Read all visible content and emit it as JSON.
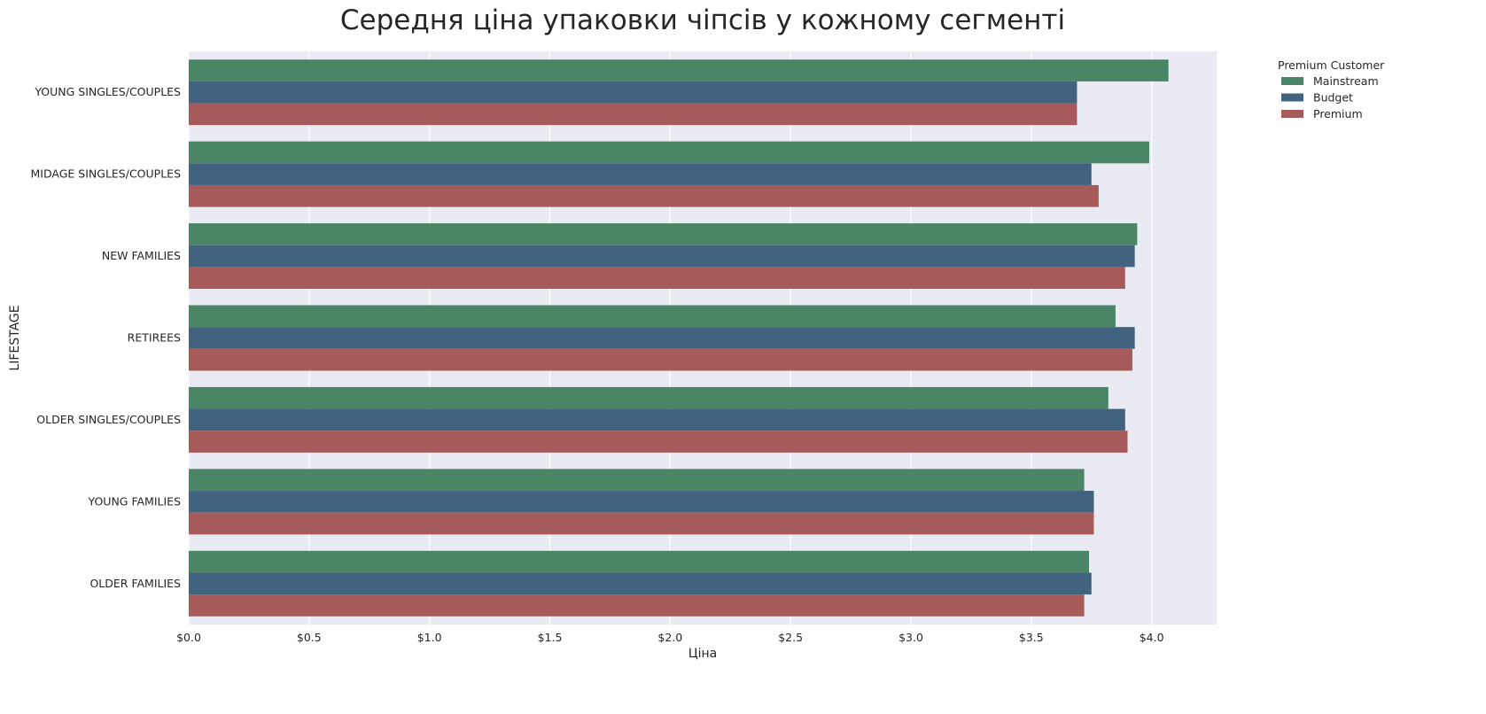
{
  "chart_data": {
    "type": "bar",
    "orientation": "horizontal",
    "title": "Середня ціна упаковки чіпсів у кожному сегменті",
    "xlabel": "Ціна",
    "ylabel": "LIFESTAGE",
    "categories": [
      "YOUNG SINGLES/COUPLES",
      "MIDAGE SINGLES/COUPLES",
      "NEW FAMILIES",
      "RETIREES",
      "OLDER SINGLES/COUPLES",
      "YOUNG FAMILIES",
      "OLDER FAMILIES"
    ],
    "series": [
      {
        "name": "Mainstream",
        "color": "#4a8665",
        "values": [
          4.07,
          3.99,
          3.94,
          3.85,
          3.82,
          3.72,
          3.74
        ]
      },
      {
        "name": "Budget",
        "color": "#42637f",
        "values": [
          3.69,
          3.75,
          3.93,
          3.93,
          3.89,
          3.76,
          3.75
        ]
      },
      {
        "name": "Premium",
        "color": "#a65a5a",
        "values": [
          3.69,
          3.78,
          3.89,
          3.92,
          3.9,
          3.76,
          3.72
        ]
      }
    ],
    "xlim": [
      0,
      4.27
    ],
    "xticks": [
      0,
      0.5,
      1.0,
      1.5,
      2.0,
      2.5,
      3.0,
      3.5,
      4.0
    ],
    "xtick_labels": [
      "$0.0",
      "$0.5",
      "$1.0",
      "$1.5",
      "$2.0",
      "$2.5",
      "$3.0",
      "$3.5",
      "$4.0"
    ],
    "legend_title": "Premium Customer",
    "legend_position": "outside-top-right",
    "grid": true,
    "background": "#eaeaf2"
  }
}
